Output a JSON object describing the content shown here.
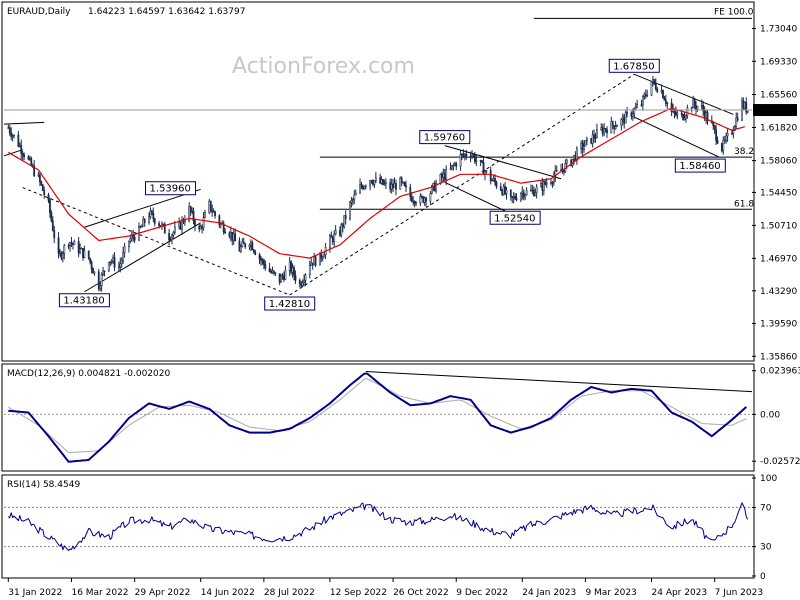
{
  "chart_data": [
    {
      "type": "candlestick",
      "title": "EURAUD,Daily",
      "ohlc_header": "1.64223 1.64597 1.63642 1.63797",
      "watermark": "ActionForex.com",
      "ylim": [
        1.3555,
        1.756
      ],
      "yticks": [
        "1.73040",
        "1.69330",
        "1.65560",
        "1.61820",
        "1.58060",
        "1.54450",
        "1.50710",
        "1.46970",
        "1.43290",
        "1.39590",
        "1.35860"
      ],
      "current_price": "1.63797",
      "xticks": [
        "31 Jan 2022",
        "16 Mar 2022",
        "29 Apr 2022",
        "14 Jun 2022",
        "28 Jul 2022",
        "12 Sep 2022",
        "26 Oct 2022",
        "9 Dec 2022",
        "24 Jan 2023",
        "9 Mar 2023",
        "24 Apr 2023",
        "7 Jun 2023"
      ],
      "x_dates": [
        "2022-01-31",
        "2022-03-16",
        "2022-04-29",
        "2022-06-14",
        "2022-07-28",
        "2022-09-12",
        "2022-10-26",
        "2022-12-09",
        "2023-01-24",
        "2023-03-09",
        "2023-04-24",
        "2023-06-07"
      ],
      "approx_close_path": [
        [
          "2022-01-31",
          1.618
        ],
        [
          "2022-02-07",
          1.6
        ],
        [
          "2022-02-14",
          1.58
        ],
        [
          "2022-02-21",
          1.56
        ],
        [
          "2022-02-28",
          1.53
        ],
        [
          "2022-03-07",
          1.47
        ],
        [
          "2022-03-14",
          1.49
        ],
        [
          "2022-03-21",
          1.48
        ],
        [
          "2022-03-28",
          1.47
        ],
        [
          "2022-04-04",
          1.44
        ],
        [
          "2022-04-11",
          1.47
        ],
        [
          "2022-04-18",
          1.46
        ],
        [
          "2022-04-25",
          1.49
        ],
        [
          "2022-05-02",
          1.5
        ],
        [
          "2022-05-09",
          1.52
        ],
        [
          "2022-05-16",
          1.51
        ],
        [
          "2022-05-23",
          1.495
        ],
        [
          "2022-05-30",
          1.505
        ],
        [
          "2022-06-06",
          1.525
        ],
        [
          "2022-06-13",
          1.5
        ],
        [
          "2022-06-20",
          1.53
        ],
        [
          "2022-06-27",
          1.51
        ],
        [
          "2022-07-04",
          1.5
        ],
        [
          "2022-07-11",
          1.48
        ],
        [
          "2022-07-18",
          1.49
        ],
        [
          "2022-07-25",
          1.47
        ],
        [
          "2022-08-01",
          1.455
        ],
        [
          "2022-08-08",
          1.445
        ],
        [
          "2022-08-15",
          1.46
        ],
        [
          "2022-08-22",
          1.44
        ],
        [
          "2022-08-29",
          1.465
        ],
        [
          "2022-09-05",
          1.47
        ],
        [
          "2022-09-12",
          1.49
        ],
        [
          "2022-09-19",
          1.5
        ],
        [
          "2022-09-26",
          1.53
        ],
        [
          "2022-10-03",
          1.55
        ],
        [
          "2022-10-10",
          1.56
        ],
        [
          "2022-10-17",
          1.555
        ],
        [
          "2022-10-24",
          1.55
        ],
        [
          "2022-10-31",
          1.555
        ],
        [
          "2022-11-07",
          1.54
        ],
        [
          "2022-11-14",
          1.535
        ],
        [
          "2022-11-21",
          1.545
        ],
        [
          "2022-11-28",
          1.56
        ],
        [
          "2022-12-05",
          1.57
        ],
        [
          "2022-12-12",
          1.585
        ],
        [
          "2022-12-19",
          1.59
        ],
        [
          "2022-12-26",
          1.575
        ],
        [
          "2023-01-02",
          1.56
        ],
        [
          "2023-01-09",
          1.55
        ],
        [
          "2023-01-16",
          1.535
        ],
        [
          "2023-01-23",
          1.545
        ],
        [
          "2023-01-30",
          1.545
        ],
        [
          "2023-02-06",
          1.55
        ],
        [
          "2023-02-13",
          1.56
        ],
        [
          "2023-02-20",
          1.57
        ],
        [
          "2023-02-27",
          1.58
        ],
        [
          "2023-03-06",
          1.595
        ],
        [
          "2023-03-13",
          1.605
        ],
        [
          "2023-03-20",
          1.615
        ],
        [
          "2023-03-27",
          1.62
        ],
        [
          "2023-04-03",
          1.625
        ],
        [
          "2023-04-10",
          1.635
        ],
        [
          "2023-04-17",
          1.645
        ],
        [
          "2023-04-24",
          1.67
        ],
        [
          "2023-05-01",
          1.66
        ],
        [
          "2023-05-08",
          1.635
        ],
        [
          "2023-05-15",
          1.63
        ],
        [
          "2023-05-22",
          1.645
        ],
        [
          "2023-05-29",
          1.64
        ],
        [
          "2023-06-05",
          1.62
        ],
        [
          "2023-06-12",
          1.595
        ],
        [
          "2023-06-19",
          1.615
        ],
        [
          "2023-06-26",
          1.645
        ],
        [
          "2023-06-30",
          1.638
        ]
      ],
      "moving_average": [
        [
          "2022-01-31",
          1.59
        ],
        [
          "2022-02-21",
          1.57
        ],
        [
          "2022-03-14",
          1.52
        ],
        [
          "2022-04-04",
          1.49
        ],
        [
          "2022-04-25",
          1.495
        ],
        [
          "2022-05-16",
          1.505
        ],
        [
          "2022-06-06",
          1.515
        ],
        [
          "2022-06-27",
          1.51
        ],
        [
          "2022-07-18",
          1.495
        ],
        [
          "2022-08-08",
          1.475
        ],
        [
          "2022-08-29",
          1.47
        ],
        [
          "2022-09-19",
          1.485
        ],
        [
          "2022-10-10",
          1.515
        ],
        [
          "2022-10-31",
          1.54
        ],
        [
          "2022-11-21",
          1.55
        ],
        [
          "2022-12-12",
          1.565
        ],
        [
          "2023-01-02",
          1.565
        ],
        [
          "2023-01-23",
          1.555
        ],
        [
          "2023-02-13",
          1.56
        ],
        [
          "2023-03-06",
          1.585
        ],
        [
          "2023-03-27",
          1.605
        ],
        [
          "2023-04-17",
          1.625
        ],
        [
          "2023-05-08",
          1.64
        ],
        [
          "2023-05-29",
          1.63
        ],
        [
          "2023-06-19",
          1.615
        ],
        [
          "2023-06-30",
          1.62
        ]
      ],
      "price_labels": [
        {
          "text": "1.43180",
          "x": "2022-03-25",
          "y": 1.4318
        },
        {
          "text": "1.53960",
          "x": "2022-05-24",
          "y": 1.5396
        },
        {
          "text": "1.42810",
          "x": "2022-08-15",
          "y": 1.4281
        },
        {
          "text": "1.59760",
          "x": "2022-12-01",
          "y": 1.5976
        },
        {
          "text": "1.52540",
          "x": "2023-01-19",
          "y": 1.5254
        },
        {
          "text": "1.67850",
          "x": "2023-04-12",
          "y": 1.6785
        },
        {
          "text": "1.58460",
          "x": "2023-05-28",
          "y": 1.5846
        }
      ],
      "level_labels": [
        {
          "text": "FE 100.0",
          "y": 1.742
        },
        {
          "text": "38.2",
          "y": 1.5846
        },
        {
          "text": "61.8",
          "y": 1.5254
        }
      ]
    },
    {
      "type": "line",
      "title": "MACD(12,26,9) 0.004821 -0.002020",
      "ylim": [
        -0.03,
        0.026
      ],
      "yticks": [
        "0.023963",
        "0.00",
        "-0.025726"
      ],
      "current_value": "0.00",
      "macd": [
        [
          "2022-01-31",
          0.002
        ],
        [
          "2022-02-14",
          0.001
        ],
        [
          "2022-02-28",
          -0.012
        ],
        [
          "2022-03-14",
          -0.026
        ],
        [
          "2022-03-28",
          -0.025
        ],
        [
          "2022-04-11",
          -0.015
        ],
        [
          "2022-04-25",
          -0.002
        ],
        [
          "2022-05-09",
          0.006
        ],
        [
          "2022-05-23",
          0.003
        ],
        [
          "2022-06-06",
          0.007
        ],
        [
          "2022-06-20",
          0.003
        ],
        [
          "2022-07-04",
          -0.006
        ],
        [
          "2022-07-18",
          -0.01
        ],
        [
          "2022-08-01",
          -0.01
        ],
        [
          "2022-08-15",
          -0.008
        ],
        [
          "2022-08-29",
          -0.002
        ],
        [
          "2022-09-12",
          0.006
        ],
        [
          "2022-09-26",
          0.016
        ],
        [
          "2022-10-07",
          0.023
        ],
        [
          "2022-10-24",
          0.012
        ],
        [
          "2022-11-07",
          0.005
        ],
        [
          "2022-11-21",
          0.006
        ],
        [
          "2022-12-05",
          0.01
        ],
        [
          "2022-12-19",
          0.008
        ],
        [
          "2023-01-02",
          -0.006
        ],
        [
          "2023-01-16",
          -0.01
        ],
        [
          "2023-01-30",
          -0.007
        ],
        [
          "2023-02-13",
          -0.002
        ],
        [
          "2023-02-27",
          0.008
        ],
        [
          "2023-03-13",
          0.015
        ],
        [
          "2023-03-27",
          0.012
        ],
        [
          "2023-04-10",
          0.014
        ],
        [
          "2023-04-24",
          0.013
        ],
        [
          "2023-05-08",
          0.001
        ],
        [
          "2023-05-22",
          -0.004
        ],
        [
          "2023-06-05",
          -0.012
        ],
        [
          "2023-06-19",
          -0.003
        ],
        [
          "2023-06-30",
          0.0048
        ]
      ],
      "signal": [
        [
          "2022-01-31",
          0.004
        ],
        [
          "2022-02-21",
          -0.006
        ],
        [
          "2022-03-14",
          -0.021
        ],
        [
          "2022-04-04",
          -0.02
        ],
        [
          "2022-04-25",
          -0.006
        ],
        [
          "2022-05-16",
          0.004
        ],
        [
          "2022-06-06",
          0.005
        ],
        [
          "2022-06-27",
          0.001
        ],
        [
          "2022-07-18",
          -0.007
        ],
        [
          "2022-08-08",
          -0.009
        ],
        [
          "2022-08-29",
          -0.004
        ],
        [
          "2022-09-19",
          0.008
        ],
        [
          "2022-10-07",
          0.02
        ],
        [
          "2022-10-31",
          0.01
        ],
        [
          "2022-11-21",
          0.006
        ],
        [
          "2022-12-12",
          0.008
        ],
        [
          "2023-01-02",
          -0.001
        ],
        [
          "2023-01-23",
          -0.008
        ],
        [
          "2023-02-13",
          -0.003
        ],
        [
          "2023-03-06",
          0.01
        ],
        [
          "2023-03-27",
          0.013
        ],
        [
          "2023-04-17",
          0.013
        ],
        [
          "2023-05-08",
          0.004
        ],
        [
          "2023-05-29",
          -0.005
        ],
        [
          "2023-06-19",
          -0.006
        ],
        [
          "2023-06-30",
          -0.002
        ]
      ]
    },
    {
      "type": "line",
      "title": "RSI(14) 58.4549",
      "ylim": [
        0,
        100
      ],
      "yticks": [
        "100",
        "70",
        "30",
        "0"
      ],
      "current_value": "58.4549",
      "rsi": [
        [
          "2022-01-31",
          62
        ],
        [
          "2022-02-14",
          55
        ],
        [
          "2022-02-28",
          40
        ],
        [
          "2022-03-14",
          26
        ],
        [
          "2022-03-28",
          45
        ],
        [
          "2022-04-11",
          40
        ],
        [
          "2022-04-25",
          56
        ],
        [
          "2022-05-09",
          58
        ],
        [
          "2022-05-23",
          50
        ],
        [
          "2022-06-06",
          58
        ],
        [
          "2022-06-20",
          48
        ],
        [
          "2022-07-04",
          45
        ],
        [
          "2022-07-18",
          42
        ],
        [
          "2022-08-01",
          38
        ],
        [
          "2022-08-15",
          40
        ],
        [
          "2022-08-29",
          48
        ],
        [
          "2022-09-12",
          60
        ],
        [
          "2022-09-26",
          66
        ],
        [
          "2022-10-07",
          72
        ],
        [
          "2022-10-24",
          58
        ],
        [
          "2022-11-07",
          55
        ],
        [
          "2022-11-21",
          57
        ],
        [
          "2022-12-05",
          62
        ],
        [
          "2022-12-19",
          55
        ],
        [
          "2023-01-02",
          46
        ],
        [
          "2023-01-16",
          42
        ],
        [
          "2023-01-30",
          52
        ],
        [
          "2023-02-13",
          58
        ],
        [
          "2023-02-27",
          65
        ],
        [
          "2023-03-13",
          70
        ],
        [
          "2023-03-27",
          62
        ],
        [
          "2023-04-10",
          66
        ],
        [
          "2023-04-24",
          70
        ],
        [
          "2023-05-08",
          50
        ],
        [
          "2023-05-22",
          58
        ],
        [
          "2023-06-05",
          33
        ],
        [
          "2023-06-19",
          52
        ],
        [
          "2023-06-26",
          72
        ],
        [
          "2023-06-30",
          58
        ]
      ]
    }
  ],
  "colors": {
    "ma": "#e00000",
    "macd": "#00008b",
    "signal": "#aaaaaa",
    "candle": "#1c2b4a",
    "line": "#000000",
    "label_border": "#000080",
    "price_highlight": "#000000"
  }
}
